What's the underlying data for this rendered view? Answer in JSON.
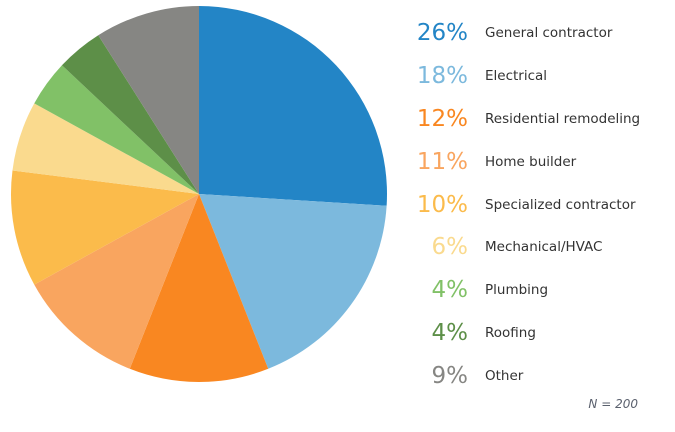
{
  "chart_data": {
    "type": "pie",
    "title": "",
    "legend_position": "right",
    "start_angle_deg": 0,
    "direction": "clockwise",
    "note": "N = 200",
    "categories": [
      "General contractor",
      "Electrical",
      "Residential remodeling",
      "Home builder",
      "Specialized contractor",
      "Mechanical/HVAC",
      "Plumbing",
      "Roofing",
      "Other"
    ],
    "values": [
      26,
      18,
      12,
      11,
      10,
      6,
      4,
      4,
      9
    ],
    "slices": [
      {
        "label": "General contractor",
        "value": 26,
        "pct_label": "26%",
        "color": "#2385c6"
      },
      {
        "label": "Electrical",
        "value": 18,
        "pct_label": "18%",
        "color": "#7cb9dd"
      },
      {
        "label": "Residential remodeling",
        "value": 12,
        "pct_label": "12%",
        "color": "#f98721"
      },
      {
        "label": "Home builder",
        "value": 11,
        "pct_label": "11%",
        "color": "#f9a55f"
      },
      {
        "label": "Specialized contractor",
        "value": 10,
        "pct_label": "10%",
        "color": "#fbbb4b"
      },
      {
        "label": "Mechanical/HVAC",
        "value": 6,
        "pct_label": "6%",
        "color": "#fada8e"
      },
      {
        "label": "Plumbing",
        "value": 4,
        "pct_label": "4%",
        "color": "#81c167"
      },
      {
        "label": "Roofing",
        "value": 4,
        "pct_label": "4%",
        "color": "#5d8f48"
      },
      {
        "label": "Other",
        "value": 9,
        "pct_label": "9%",
        "color": "#868683"
      }
    ]
  },
  "colors": {
    "legend_label_text": "#333333",
    "note_text": "#5b616e",
    "background": "#ffffff"
  }
}
